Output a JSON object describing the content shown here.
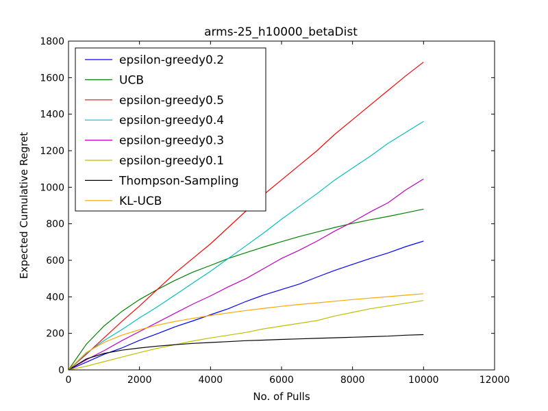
{
  "chart_data": {
    "type": "line",
    "title": "arms-25_h10000_betaDist",
    "xlabel": "No. of Pulls",
    "ylabel": "Expected Cumulative Regret",
    "xlim": [
      0,
      12000
    ],
    "ylim": [
      0,
      1800
    ],
    "xticks": [
      "0",
      "2000",
      "4000",
      "6000",
      "8000",
      "10000",
      "12000"
    ],
    "yticks": [
      "0",
      "200",
      "400",
      "600",
      "800",
      "1000",
      "1200",
      "1400",
      "1600",
      "1800"
    ],
    "grid": false,
    "legend_position": "top-left",
    "x": [
      0,
      500,
      1000,
      1500,
      2000,
      2500,
      3000,
      3500,
      4000,
      4500,
      5000,
      5500,
      6000,
      6500,
      7000,
      7500,
      8000,
      8500,
      9000,
      9500,
      10000
    ],
    "series": [
      {
        "name": "epsilon-greedy0.2",
        "color": "#0000ff",
        "values": [
          0,
          42,
          85,
          120,
          162,
          198,
          236,
          268,
          302,
          335,
          375,
          410,
          440,
          470,
          508,
          545,
          578,
          610,
          640,
          675,
          705
        ]
      },
      {
        "name": "UCB",
        "color": "#008000",
        "values": [
          0,
          140,
          240,
          320,
          385,
          440,
          490,
          535,
          572,
          610,
          642,
          673,
          702,
          730,
          755,
          780,
          802,
          822,
          840,
          860,
          880
        ]
      },
      {
        "name": "epsilon-greedy0.5",
        "color": "#ff0000",
        "values": [
          0,
          85,
          175,
          265,
          350,
          440,
          530,
          610,
          690,
          780,
          870,
          960,
          1040,
          1120,
          1200,
          1290,
          1370,
          1450,
          1530,
          1610,
          1685
        ]
      },
      {
        "name": "epsilon-greedy0.4",
        "color": "#00bfbf",
        "values": [
          0,
          90,
          160,
          220,
          285,
          345,
          410,
          475,
          540,
          610,
          680,
          750,
          825,
          895,
          965,
          1040,
          1105,
          1170,
          1240,
          1300,
          1360
        ]
      },
      {
        "name": "epsilon-greedy0.3",
        "color": "#bf00bf",
        "values": [
          0,
          55,
          105,
          160,
          210,
          260,
          310,
          360,
          405,
          455,
          500,
          555,
          610,
          655,
          705,
          760,
          810,
          865,
          915,
          985,
          1045
        ]
      },
      {
        "name": "epsilon-greedy0.1",
        "color": "#bfbf00",
        "values": [
          0,
          20,
          45,
          70,
          95,
          118,
          138,
          158,
          175,
          190,
          205,
          225,
          240,
          255,
          270,
          295,
          315,
          335,
          350,
          365,
          380
        ]
      },
      {
        "name": "Thompson-Sampling",
        "color": "#000000",
        "values": [
          0,
          60,
          90,
          108,
          120,
          130,
          138,
          145,
          150,
          155,
          160,
          163,
          167,
          170,
          173,
          176,
          179,
          182,
          185,
          190,
          193
        ]
      },
      {
        "name": "KL-UCB",
        "color": "#ffa500",
        "values": [
          0,
          95,
          150,
          190,
          220,
          245,
          265,
          282,
          298,
          312,
          325,
          337,
          348,
          358,
          367,
          376,
          385,
          393,
          401,
          409,
          417
        ]
      }
    ]
  }
}
